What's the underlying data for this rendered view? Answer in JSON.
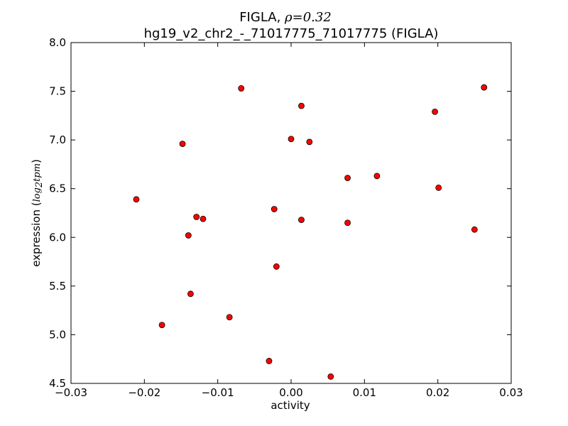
{
  "chart_data": {
    "type": "scatter",
    "title": {
      "prefix": "FIGLA, ",
      "rho_symbol": "ρ",
      "rho_value": "=0.32",
      "subtitle": "hg19_v2_chr2_-_71017775_71017775 (FIGLA)"
    },
    "xlabel": "activity",
    "ylabel": {
      "text": "expression (",
      "math_log": "log",
      "math_sub": "2",
      "math_unit": "tpm",
      "close": ")"
    },
    "xlim": [
      -0.03,
      0.03
    ],
    "ylim": [
      4.5,
      8.0
    ],
    "x_ticks": [
      -0.03,
      -0.02,
      -0.01,
      0.0,
      0.01,
      0.02,
      0.03
    ],
    "x_tick_labels": [
      "−0.03",
      "−0.02",
      "−0.01",
      "0.00",
      "0.01",
      "0.02",
      "0.03"
    ],
    "y_ticks": [
      4.5,
      5.0,
      5.5,
      6.0,
      6.5,
      7.0,
      7.5,
      8.0
    ],
    "y_tick_labels": [
      "4.5",
      "5.0",
      "5.5",
      "6.0",
      "6.5",
      "7.0",
      "7.5",
      "8.0"
    ],
    "marker_color": "#ff0000",
    "marker_edge": "#000000",
    "grid": false,
    "points": [
      {
        "x": -0.0211,
        "y": 6.39
      },
      {
        "x": -0.0176,
        "y": 5.1
      },
      {
        "x": -0.0148,
        "y": 6.96
      },
      {
        "x": -0.014,
        "y": 6.02
      },
      {
        "x": -0.0137,
        "y": 5.42
      },
      {
        "x": -0.0129,
        "y": 6.21
      },
      {
        "x": -0.012,
        "y": 6.19
      },
      {
        "x": -0.0084,
        "y": 5.18
      },
      {
        "x": -0.0068,
        "y": 7.53
      },
      {
        "x": -0.003,
        "y": 4.73
      },
      {
        "x": -0.0023,
        "y": 6.29
      },
      {
        "x": -0.002,
        "y": 5.7
      },
      {
        "x": 0.0,
        "y": 7.01
      },
      {
        "x": 0.0014,
        "y": 7.35
      },
      {
        "x": 0.0014,
        "y": 6.18
      },
      {
        "x": 0.0025,
        "y": 6.98
      },
      {
        "x": 0.0054,
        "y": 4.57
      },
      {
        "x": 0.0077,
        "y": 6.61
      },
      {
        "x": 0.0077,
        "y": 6.15
      },
      {
        "x": 0.0117,
        "y": 6.63
      },
      {
        "x": 0.0196,
        "y": 7.29
      },
      {
        "x": 0.0201,
        "y": 6.51
      },
      {
        "x": 0.025,
        "y": 6.08
      },
      {
        "x": 0.0263,
        "y": 7.54
      }
    ]
  }
}
